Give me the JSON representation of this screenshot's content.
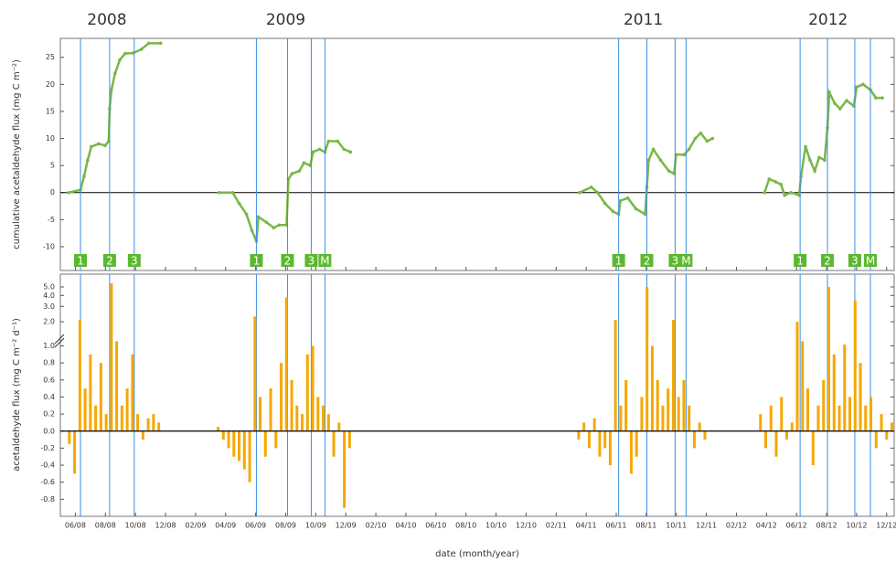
{
  "chart_data": [
    {
      "type": "line",
      "y_label": "cumulative acetaldehyde flux (mg C m⁻²)",
      "xlim": [
        4,
        59.5
      ],
      "ylim": [
        -14.4,
        28.5
      ],
      "yticks": [
        -10,
        -5,
        0,
        5,
        10,
        15,
        20,
        25
      ],
      "color": "#7ab648",
      "year_labels": [
        {
          "text": "2008",
          "x": 7.1
        },
        {
          "text": "2009",
          "x": 19
        },
        {
          "text": "2011",
          "x": 42.8
        },
        {
          "text": "2012",
          "x": 55.1
        }
      ],
      "event_color": "#3b8fe0",
      "event_box_color": "#5cb82e",
      "events": [
        {
          "label": "1",
          "x": 5.34
        },
        {
          "label": "2",
          "x": 7.28
        },
        {
          "label": "3",
          "x": 8.92
        },
        {
          "label": "1",
          "x": 17.05
        },
        {
          "label": "2",
          "x": 19.12
        },
        {
          "label": "3",
          "x": 20.7
        },
        {
          "label": "M",
          "x": 21.61
        },
        {
          "label": "1",
          "x": 41.16
        },
        {
          "label": "2",
          "x": 43.04
        },
        {
          "label": "3",
          "x": 44.92
        },
        {
          "label": "M",
          "x": 45.65
        },
        {
          "label": "1",
          "x": 53.24
        },
        {
          "label": "2",
          "x": 55.06
        },
        {
          "label": "3",
          "x": 56.88
        },
        {
          "label": "M",
          "x": 57.92
        }
      ],
      "series": [
        {
          "x": [
            4.55,
            5.34,
            5.58,
            5.82,
            6.06,
            6.55,
            6.98,
            7.22,
            7.28,
            7.4,
            7.64,
            7.95,
            8.31,
            8.86,
            9.4,
            9.89,
            10.68
          ],
          "values": [
            0,
            0.5,
            3,
            6,
            8.5,
            9,
            8.7,
            9.5,
            15.5,
            19,
            22,
            24.5,
            25.7,
            25.8,
            26.5,
            27.6,
            27.6
          ]
        },
        {
          "x": [
            14.56,
            15.47,
            15.9,
            16.39,
            16.75,
            17.05,
            17.18,
            17.72,
            18.2,
            18.57,
            19.06,
            19.18,
            19.42,
            19.91,
            20.21,
            20.64,
            20.82,
            21.25,
            21.61,
            21.85,
            22.46,
            22.88,
            23.31
          ],
          "values": [
            0,
            0,
            -2,
            -4,
            -7,
            -9,
            -4.5,
            -5.5,
            -6.5,
            -6,
            -6,
            2.5,
            3.5,
            4,
            5.5,
            5,
            7.5,
            8,
            7.5,
            9.5,
            9.5,
            8,
            7.5
          ]
        },
        {
          "x": [
            38.55,
            39.34,
            39.76,
            40.25,
            40.79,
            41.16,
            41.28,
            41.77,
            42.31,
            42.92,
            43.04,
            43.16,
            43.47,
            43.95,
            44.5,
            44.86,
            44.98,
            45.53,
            45.84,
            46.26,
            46.62,
            47.05,
            47.41
          ],
          "values": [
            0,
            1,
            0,
            -2,
            -3.5,
            -4,
            -1.5,
            -1,
            -3,
            -4,
            1,
            6,
            8,
            6,
            4,
            3.5,
            7,
            7,
            8,
            10,
            11,
            9.5,
            10
          ]
        },
        {
          "x": [
            50.87,
            51.18,
            51.6,
            51.97,
            52.21,
            52.63,
            53.18,
            53.3,
            53.6,
            53.9,
            54.21,
            54.51,
            54.87,
            55.06,
            55.18,
            55.54,
            55.9,
            56.33,
            56.82,
            57.0,
            57.43,
            57.92,
            58.28,
            58.71
          ],
          "values": [
            0,
            2.5,
            2,
            1.5,
            -0.5,
            0,
            -0.5,
            3,
            8.5,
            6,
            4,
            6.5,
            6,
            12,
            18.5,
            16.5,
            15.5,
            17,
            16,
            19.5,
            20,
            19,
            17.5,
            17.5
          ]
        }
      ]
    },
    {
      "type": "bar",
      "y_label": "acetaldehyde flux (mg C m⁻² d⁻¹)",
      "x_label": "date (month/year)",
      "xlim": [
        4,
        59.5
      ],
      "ylim": [
        -1.0,
        7
      ],
      "y_break": 1.0,
      "upper_scale": "log",
      "color": "#f5a800",
      "yticks": [
        {
          "value": 5,
          "label": "5.0"
        },
        {
          "value": 4,
          "label": "4.0"
        },
        {
          "value": 3,
          "label": "3.0"
        },
        {
          "value": 2,
          "label": "2.0"
        },
        {
          "value": 1,
          "label": "1.0"
        },
        {
          "value": 0.8,
          "label": "0.8"
        },
        {
          "value": 0.6,
          "label": "0.6"
        },
        {
          "value": 0.4,
          "label": "0.4"
        },
        {
          "value": 0.2,
          "label": "0.2"
        },
        {
          "value": 0,
          "label": "0.0"
        },
        {
          "value": -0.2,
          "label": "-0.2"
        },
        {
          "value": -0.4,
          "label": "-0.4"
        },
        {
          "value": -0.6,
          "label": "-0.6"
        },
        {
          "value": -0.8,
          "label": "-0.8"
        }
      ],
      "xticks": [
        {
          "value": 5,
          "label": "06/08"
        },
        {
          "value": 7,
          "label": "08/08"
        },
        {
          "value": 9,
          "label": "10/08"
        },
        {
          "value": 11,
          "label": "12/08"
        },
        {
          "value": 13,
          "label": "02/09"
        },
        {
          "value": 15,
          "label": "04/09"
        },
        {
          "value": 17,
          "label": "06/09"
        },
        {
          "value": 19,
          "label": "08/09"
        },
        {
          "value": 21,
          "label": "10/09"
        },
        {
          "value": 23,
          "label": "12/09"
        },
        {
          "value": 25,
          "label": "02/10"
        },
        {
          "value": 27,
          "label": "04/10"
        },
        {
          "value": 29,
          "label": "06/10"
        },
        {
          "value": 31,
          "label": "08/10"
        },
        {
          "value": 33,
          "label": "10/10"
        },
        {
          "value": 35,
          "label": "12/10"
        },
        {
          "value": 37,
          "label": "02/11"
        },
        {
          "value": 39,
          "label": "04/11"
        },
        {
          "value": 41,
          "label": "06/11"
        },
        {
          "value": 43,
          "label": "08/11"
        },
        {
          "value": 45,
          "label": "10/11"
        },
        {
          "value": 47,
          "label": "12/11"
        },
        {
          "value": 49,
          "label": "02/12"
        },
        {
          "value": 51,
          "label": "04/12"
        },
        {
          "value": 53,
          "label": "06/12"
        },
        {
          "value": 55,
          "label": "08/12"
        },
        {
          "value": 57,
          "label": "10/12"
        },
        {
          "value": 59,
          "label": "12/12"
        }
      ],
      "series": [
        {
          "x": [
            4.6,
            4.95,
            5.3,
            5.65,
            6.0,
            6.35,
            6.7,
            7.05,
            7.4,
            7.75,
            8.1,
            8.45,
            8.8,
            9.15,
            9.5,
            9.85,
            10.2,
            10.55
          ],
          "values": [
            -0.15,
            -0.5,
            2.1,
            0.5,
            0.9,
            0.3,
            0.8,
            0.2,
            5.5,
            1.2,
            0.3,
            0.5,
            0.9,
            0.2,
            -0.1,
            0.15,
            0.2,
            0.1
          ]
        },
        {
          "x": [
            14.5,
            14.85,
            15.2,
            15.55,
            15.9,
            16.25,
            16.6,
            16.95,
            17.3,
            17.65,
            18.0,
            18.35,
            18.7,
            19.05,
            19.4,
            19.75,
            20.1,
            20.45,
            20.8,
            21.15,
            21.5,
            21.85,
            22.2,
            22.55,
            22.9,
            23.25
          ],
          "values": [
            0.05,
            -0.1,
            -0.2,
            -0.3,
            -0.35,
            -0.45,
            -0.6,
            2.3,
            0.4,
            -0.3,
            0.5,
            -0.2,
            0.8,
            3.8,
            0.6,
            0.3,
            0.2,
            0.9,
            1.0,
            0.4,
            0.3,
            0.2,
            -0.3,
            0.1,
            -0.9,
            -0.2
          ]
        },
        {
          "x": [
            38.5,
            38.85,
            39.2,
            39.55,
            39.9,
            40.25,
            40.6,
            40.95,
            41.3,
            41.65,
            42.0,
            42.35,
            42.7,
            43.05,
            43.4,
            43.75,
            44.1,
            44.45,
            44.8,
            45.15,
            45.5,
            45.85,
            46.2,
            46.55,
            46.9
          ],
          "values": [
            -0.1,
            0.1,
            -0.2,
            0.15,
            -0.3,
            -0.2,
            -0.4,
            2.1,
            0.3,
            0.6,
            -0.5,
            -0.3,
            0.4,
            5.0,
            1.0,
            0.6,
            0.3,
            0.5,
            2.1,
            0.4,
            0.6,
            0.3,
            -0.2,
            0.1,
            -0.1
          ]
        },
        {
          "x": [
            50.6,
            50.95,
            51.3,
            51.65,
            52.0,
            52.35,
            52.7,
            53.05,
            53.4,
            53.75,
            54.1,
            54.45,
            54.8,
            55.15,
            55.5,
            55.85,
            56.2,
            56.55,
            56.9,
            57.25,
            57.6,
            57.95,
            58.3,
            58.65,
            59.0,
            59.35
          ],
          "values": [
            0.2,
            -0.2,
            0.3,
            -0.3,
            0.4,
            -0.1,
            0.1,
            2.0,
            1.2,
            0.5,
            -0.4,
            0.3,
            0.6,
            5.0,
            0.9,
            0.3,
            1.1,
            0.4,
            3.5,
            0.8,
            0.3,
            0.4,
            -0.2,
            0.2,
            -0.1,
            0.1
          ]
        }
      ]
    }
  ]
}
